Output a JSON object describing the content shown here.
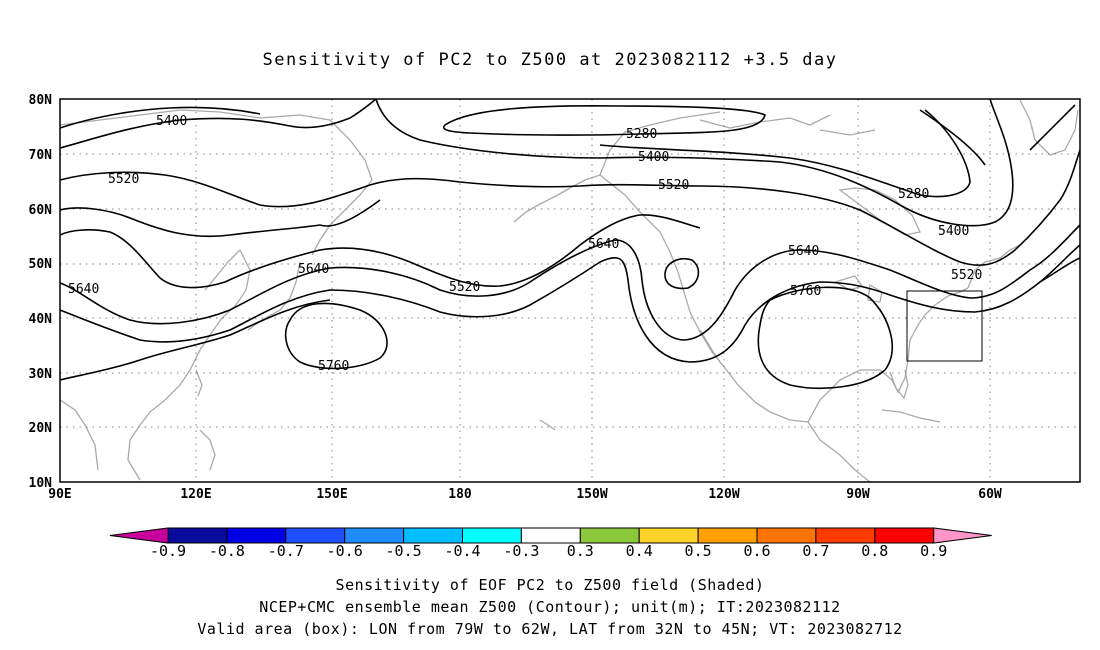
{
  "title": "Sensitivity of PC2 to Z500 at 2023082112 +3.5 day",
  "lat_labels": [
    "80N",
    "70N",
    "60N",
    "50N",
    "40N",
    "30N",
    "20N",
    "10N"
  ],
  "lon_labels": [
    "90E",
    "120E",
    "150E",
    "180",
    "150W",
    "120W",
    "90W",
    "60W"
  ],
  "contour_labels": [
    {
      "id": "5400-a",
      "text": "5400"
    },
    {
      "id": "5520-a",
      "text": "5520"
    },
    {
      "id": "5640-a",
      "text": "5640"
    },
    {
      "id": "5640-b",
      "text": "5640"
    },
    {
      "id": "5520-b",
      "text": "5520"
    },
    {
      "id": "5760-a",
      "text": "5760"
    },
    {
      "id": "5280-a",
      "text": "5280"
    },
    {
      "id": "5400-b",
      "text": "5400"
    },
    {
      "id": "5520-c",
      "text": "5520"
    },
    {
      "id": "5640-c",
      "text": "5640"
    },
    {
      "id": "5640-d",
      "text": "5640"
    },
    {
      "id": "5760-b",
      "text": "5760"
    },
    {
      "id": "5280-b",
      "text": "5280"
    },
    {
      "id": "5400-c",
      "text": "5400"
    },
    {
      "id": "5520-d",
      "text": "5520"
    }
  ],
  "valid_box": {
    "lon_from": "79W",
    "lon_to": "62W",
    "lat_from": "32N",
    "lat_to": "45N"
  },
  "colorbar": {
    "colors": [
      "#c8009b",
      "#0a0a9c",
      "#0000e6",
      "#1e50ff",
      "#1e8cff",
      "#00beff",
      "#00ffff",
      "#ffffff",
      "#8cc83c",
      "#ffd228",
      "#ffa000",
      "#ff7300",
      "#ff3c00",
      "#ff0000",
      "#ff96c8"
    ],
    "labels": [
      "-0.9",
      "-0.8",
      "-0.7",
      "-0.6",
      "-0.5",
      "-0.4",
      "-0.3",
      "0.3",
      "0.4",
      "0.5",
      "0.6",
      "0.7",
      "0.8",
      "0.9"
    ]
  },
  "caption": {
    "line1": "Sensitivity of EOF PC2 to Z500 field (Shaded)",
    "line2": "NCEP+CMC ensemble mean Z500 (Contour); unit(m); IT:2023082112",
    "line3": "Valid area (box): LON from 79W to 62W, LAT from 32N to 45N; VT: 2023082712"
  },
  "colors": {
    "coastline": "#a9a9a9",
    "contour": "#000000",
    "grid": "#808080"
  }
}
